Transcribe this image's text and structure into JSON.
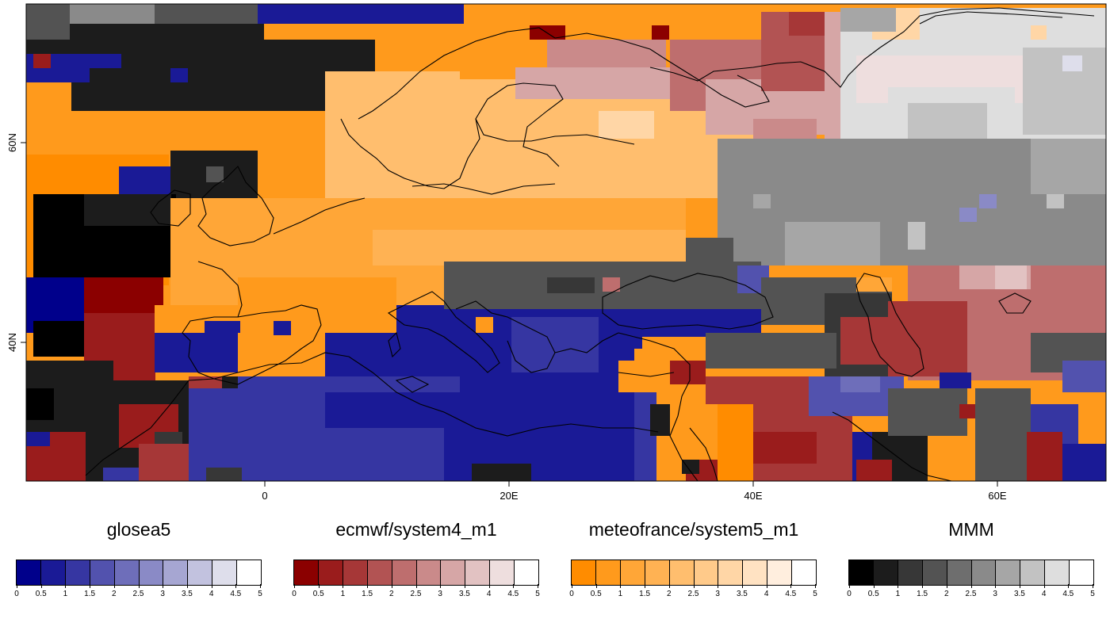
{
  "map": {
    "x_axis": {
      "ticks": [
        "0",
        "20E",
        "40E",
        "60E"
      ]
    },
    "y_axis": {
      "ticks": [
        "60N",
        "40N"
      ]
    }
  },
  "legends": [
    {
      "title": "glosea5",
      "colors": [
        "#00008b",
        "#1a1a96",
        "#3636a2",
        "#5252ae",
        "#6e6eba",
        "#8a8ac6",
        "#a6a6d2",
        "#c2c2df",
        "#dedeeb",
        "#ffffff"
      ],
      "ticks": [
        "0",
        "0.5",
        "1",
        "1.5",
        "2",
        "2.5",
        "3",
        "3.5",
        "4",
        "4.5",
        "5"
      ]
    },
    {
      "title": "ecmwf/system4_m1",
      "colors": [
        "#8b0000",
        "#9a1c1c",
        "#a63737",
        "#b25353",
        "#be6e6e",
        "#ca8a8a",
        "#d6a6a6",
        "#e2c2c2",
        "#eedede",
        "#ffffff"
      ],
      "ticks": [
        "0",
        "0.5",
        "1",
        "1.5",
        "2",
        "2.5",
        "3",
        "3.5",
        "4",
        "4.5",
        "5"
      ]
    },
    {
      "title": "meteofrance/system5_m1",
      "colors": [
        "#ff8c00",
        "#ff9a1c",
        "#ffa637",
        "#ffb253",
        "#ffbe6e",
        "#ffca8a",
        "#ffd6a6",
        "#ffe2c2",
        "#ffeede",
        "#ffffff"
      ],
      "ticks": [
        "0",
        "0.5",
        "1",
        "1.5",
        "2",
        "2.5",
        "3",
        "3.5",
        "4",
        "4.5",
        "5"
      ]
    },
    {
      "title": "MMM",
      "colors": [
        "#000000",
        "#1c1c1c",
        "#373737",
        "#535353",
        "#6e6e6e",
        "#8a8a8a",
        "#a6a6a6",
        "#c2c2c2",
        "#dedede",
        "#ffffff"
      ],
      "ticks": [
        "0",
        "0.5",
        "1",
        "1.5",
        "2",
        "2.5",
        "3",
        "3.5",
        "4",
        "4.5",
        "5"
      ]
    }
  ]
}
